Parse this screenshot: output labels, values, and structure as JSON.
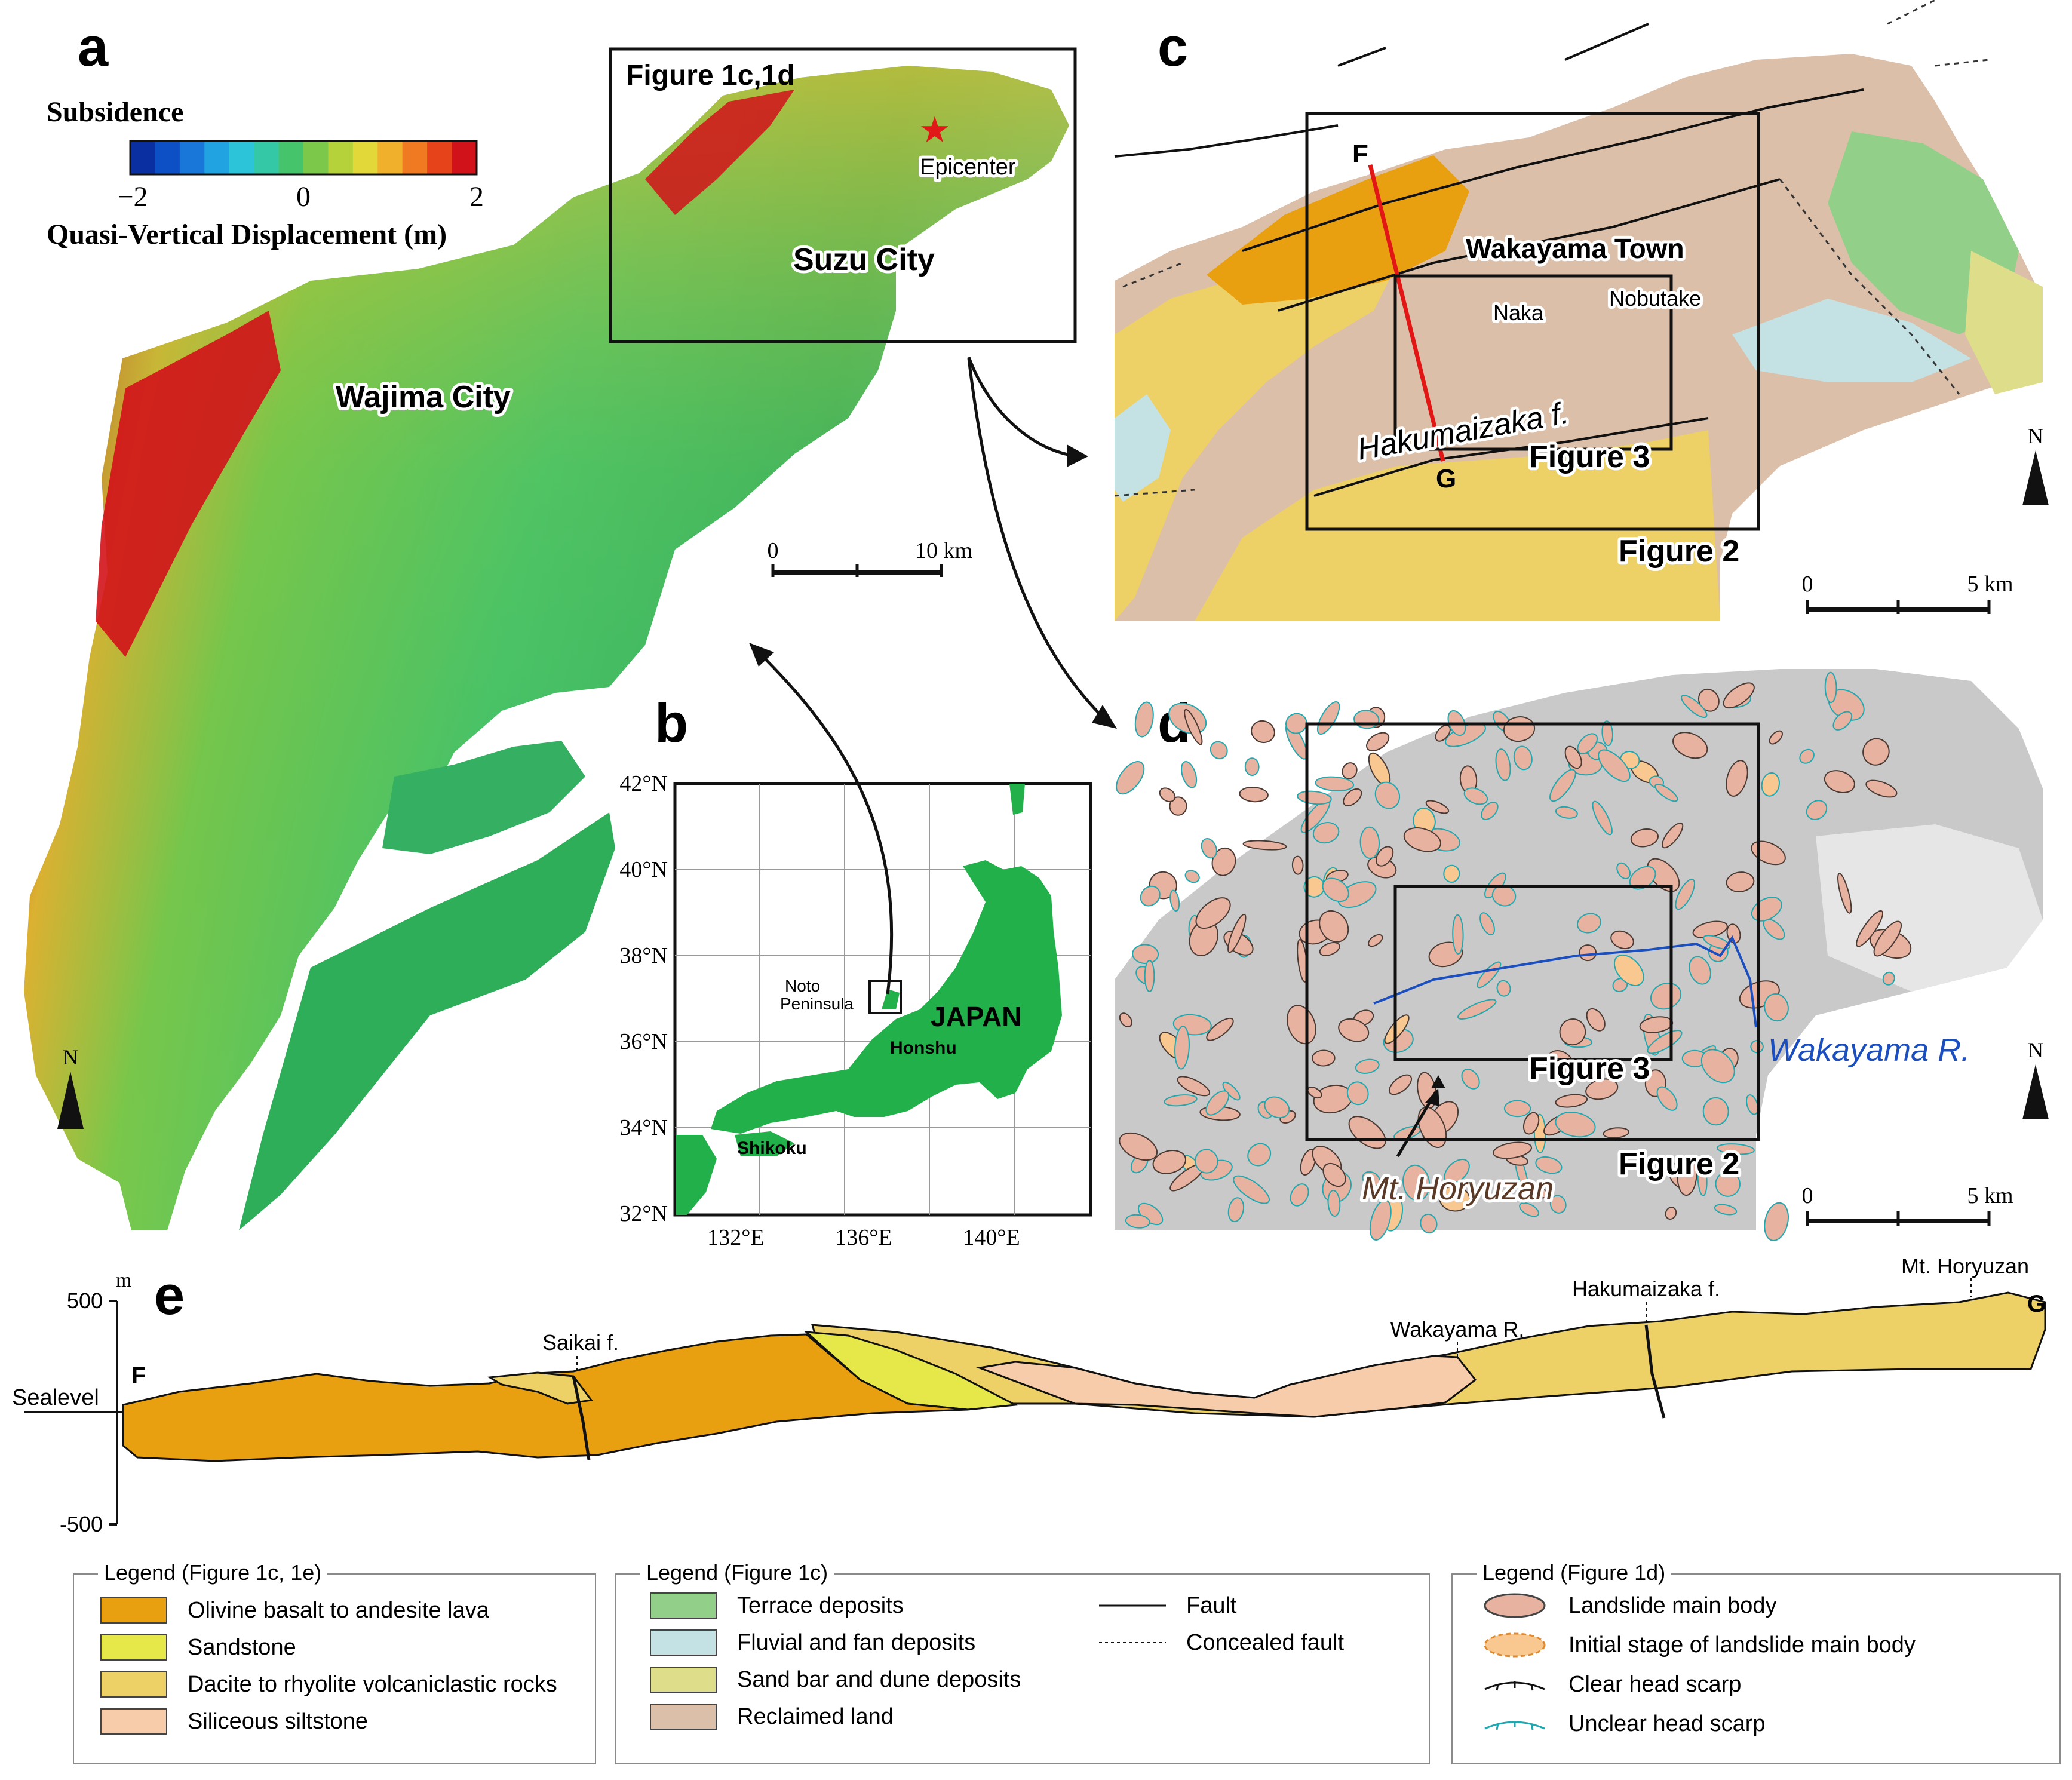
{
  "panels": {
    "a": {
      "letter": "a",
      "colorbar": {
        "title": "Subsidence",
        "caption": "Quasi-Vertical Displacement (m)",
        "ticks": [
          "−2",
          "0",
          "2"
        ],
        "range": [
          -2,
          2
        ],
        "colors": [
          "#0a2fa0",
          "#0d4fc4",
          "#1877d8",
          "#21a3e2",
          "#2cc4d8",
          "#35c8a6",
          "#45c46c",
          "#7cc84a",
          "#b5d23a",
          "#e3d83a",
          "#f0b02c",
          "#ef7a22",
          "#e6431a",
          "#d1121a"
        ]
      },
      "inset_label": "Figure 1c,1d",
      "epicenter_label": "Epicenter",
      "city_labels": [
        "Suzu City",
        "Wajima City"
      ],
      "scalebar": {
        "labels": [
          "0",
          "10 km"
        ]
      },
      "north": "N"
    },
    "b": {
      "letter": "b",
      "lat_ticks": [
        "42°N",
        "40°N",
        "38°N",
        "36°N",
        "34°N",
        "32°N"
      ],
      "lon_ticks": [
        "132°E",
        "136°E",
        "140°E"
      ],
      "labels": {
        "peninsula_line1": "Noto",
        "peninsula_line2": "Peninsula",
        "country": "JAPAN",
        "island1": "Honshu",
        "island2": "Shikoku"
      }
    },
    "c": {
      "letter": "c",
      "labels": {
        "town": "Wakayama Town",
        "naka": "Naka",
        "nobutake": "Nobutake",
        "fault": "Hakumaizaka f.",
        "fig3": "Figure 3",
        "fig2": "Figure 2",
        "F": "F",
        "G": "G"
      },
      "scalebar": {
        "labels": [
          "0",
          "5 km"
        ]
      },
      "north": "N"
    },
    "d": {
      "letter": "d",
      "labels": {
        "fig3": "Figure 3",
        "fig2": "Figure 2",
        "river": "Wakayama R.",
        "mountain": "Mt. Horyuzan"
      },
      "scalebar": {
        "labels": [
          "0",
          "5 km"
        ]
      },
      "north": "N"
    },
    "e": {
      "letter": "e",
      "axis": {
        "unit": "m",
        "ticks": [
          "500",
          "Sealevel",
          "-500"
        ]
      },
      "annotations": {
        "F": "F",
        "G": "G",
        "saikai": "Saikai f.",
        "river": "Wakayama R.",
        "hakumaizaka": "Hakumaizaka f.",
        "mountain": "Mt. Horyuzan"
      }
    }
  },
  "legends": [
    {
      "title": "Legend (Figure 1c, 1e)",
      "items": [
        {
          "label": "Olivine basalt to andesite lava",
          "color": "#e8a010"
        },
        {
          "label": "Sandstone",
          "color": "#e6e84a"
        },
        {
          "label": "Dacite to rhyolite volcaniclastic rocks",
          "color": "#edd066"
        },
        {
          "label": "Siliceous siltstone",
          "color": "#f7ccaa"
        }
      ]
    },
    {
      "title": "Legend (Figure 1c)",
      "items": [
        {
          "label": "Terrace deposits",
          "color": "#92d08a"
        },
        {
          "label": "Fluvial and fan deposits",
          "color": "#c4e2e4"
        },
        {
          "label": "Sand bar and dune deposits",
          "color": "#dede8a"
        },
        {
          "label": "Reclaimed land",
          "color": "#dcbfa8"
        }
      ],
      "lines": [
        {
          "label": "Fault",
          "style": "solid"
        },
        {
          "label": "Concealed fault",
          "style": "dashed"
        }
      ]
    },
    {
      "title": "Legend (Figure 1d)",
      "items": [
        {
          "label": "Landslide main body",
          "icon": "landslide-body-icon",
          "color": "#e8b2a0"
        },
        {
          "label": "Initial stage of landslide main body",
          "icon": "initial-landslide-icon",
          "color": "#f8c890"
        },
        {
          "label": "Clear head scarp",
          "icon": "clear-scarp-icon",
          "color": "#111111"
        },
        {
          "label": "Unclear head scarp",
          "icon": "unclear-scarp-icon",
          "color": "#20a8b0"
        }
      ]
    }
  ]
}
